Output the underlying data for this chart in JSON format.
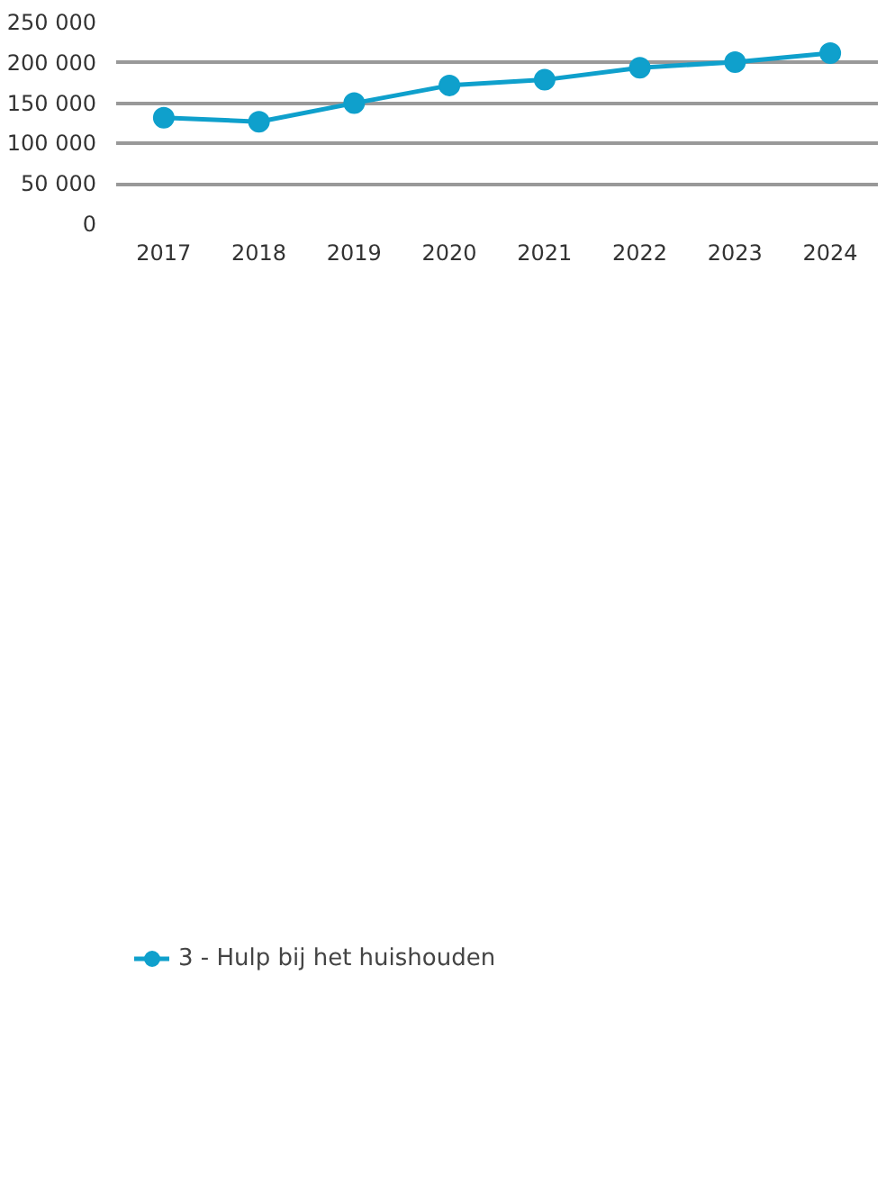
{
  "chart_data": {
    "type": "line",
    "categories": [
      "2017",
      "2018",
      "2019",
      "2020",
      "2021",
      "2022",
      "2023",
      "2024"
    ],
    "series": [
      {
        "name": "3 - Hulp bij het huishouden",
        "color": "#0fa0cc",
        "values": [
          132000,
          127000,
          150000,
          172000,
          179000,
          194000,
          201000,
          212000
        ]
      }
    ],
    "ylim": [
      0,
      250000
    ],
    "yticks": [
      {
        "value": 0,
        "label": "0"
      },
      {
        "value": 50000,
        "label": "50 000"
      },
      {
        "value": 100000,
        "label": "100 000"
      },
      {
        "value": 150000,
        "label": "150 000"
      },
      {
        "value": 200000,
        "label": "200 000"
      },
      {
        "value": 250000,
        "label": "250 000"
      }
    ],
    "grid": "y",
    "legend": "bottom left",
    "marker": "circle",
    "line_style": "solid"
  }
}
